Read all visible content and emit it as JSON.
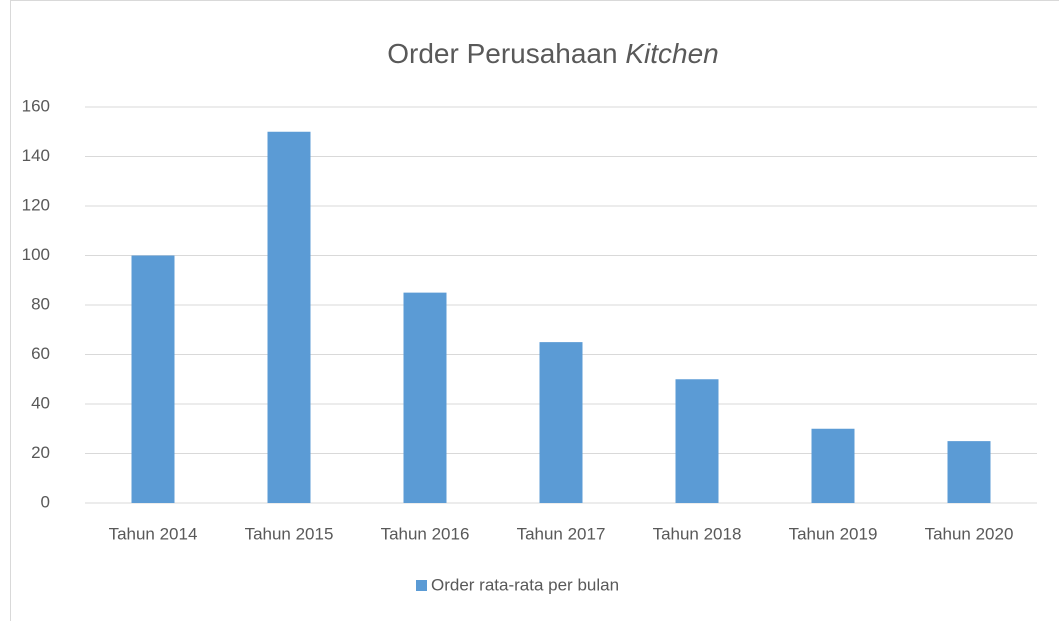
{
  "chart_data": {
    "type": "bar",
    "title": {
      "text": "Order Perusahaan",
      "italic": "Kitchen"
    },
    "categories": [
      "Tahun 2014",
      "Tahun 2015",
      "Tahun 2016",
      "Tahun 2017",
      "Tahun 2018",
      "Tahun 2019",
      "Tahun 2020"
    ],
    "series": [
      {
        "name": "Order rata-rata per bulan",
        "color": "#5b9bd5",
        "values": [
          100,
          150,
          85,
          65,
          50,
          30,
          25
        ]
      }
    ],
    "ylim": [
      0,
      160
    ],
    "yticks": [
      0,
      20,
      40,
      60,
      80,
      100,
      120,
      140,
      160
    ],
    "grid": true,
    "legend": "bottom"
  }
}
